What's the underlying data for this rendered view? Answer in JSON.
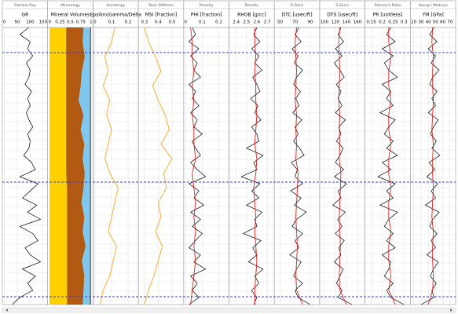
{
  "chart_data": [
    {
      "type": "line",
      "title": "Gamma Ray",
      "xlabel": "GR",
      "xlim": [
        0,
        160
      ],
      "xticks": [
        0,
        50,
        100,
        150
      ],
      "series": [
        {
          "color": "#000000",
          "values": [
            95,
            60,
            100,
            90,
            110,
            85,
            100,
            95,
            80,
            105,
            90,
            100,
            85,
            95,
            110,
            90,
            100,
            95,
            75,
            105,
            120,
            60,
            130,
            100,
            70,
            125,
            90,
            140,
            60,
            110,
            130,
            80,
            100,
            140,
            70,
            120,
            90,
            110,
            60,
            30
          ]
        }
      ]
    },
    {
      "type": "area",
      "title": "Mineralogy",
      "xlabel": "Mineral Volumes",
      "xlim": [
        0,
        1
      ],
      "xticks": [
        0,
        0.25,
        0.5,
        0.75,
        1
      ],
      "series": [
        {
          "color": "#ffd000",
          "values": [
            0.4,
            0.4,
            0.4,
            0.4,
            0.4,
            0.4,
            0.4,
            0.4,
            0.4,
            0.4,
            0.4,
            0.42,
            0.42,
            0.42,
            0.42,
            0.42,
            0.42,
            0.42,
            0.42,
            0.42
          ]
        },
        {
          "color": "#b35a12",
          "values": [
            0.42,
            0.4,
            0.45,
            0.38,
            0.35,
            0.3,
            0.42,
            0.35,
            0.44,
            0.4,
            0.45,
            0.4,
            0.35,
            0.42,
            0.38,
            0.45,
            0.36,
            0.42,
            0.4,
            0.38
          ]
        },
        {
          "color": "#7ec8f0",
          "values": [
            0.15,
            0.17,
            0.12,
            0.19,
            0.22,
            0.27,
            0.15,
            0.22,
            0.13,
            0.17,
            0.12,
            0.15,
            0.2,
            0.13,
            0.17,
            0.1,
            0.19,
            0.13,
            0.15,
            0.17
          ]
        }
      ]
    },
    {
      "type": "line",
      "title": "Anisotropy",
      "xlabel": "Epsilon/Gamma/Delta",
      "xlim": [
        0,
        0.25
      ],
      "xticks": [
        0,
        0.1,
        0.2
      ],
      "series": [
        {
          "color": "#f5a623",
          "values": [
            0.12,
            0.1,
            0.06,
            0.08,
            0.05,
            0.09,
            0.07,
            0.1,
            0.08,
            0.06,
            0.09,
            0.14,
            0.12,
            0.1,
            0.08,
            0.13,
            0.11,
            0.09,
            0.05,
            0.03
          ]
        }
      ]
    },
    {
      "type": "line",
      "title": "Rock Stiffness",
      "xlabel": "MSI [fraction]",
      "xlim": [
        0.27,
        0.57
      ],
      "xticks": [
        0.3,
        0.4,
        0.5
      ],
      "series": [
        {
          "color": "#f5a623",
          "values": [
            0.3,
            0.33,
            0.38,
            0.42,
            0.36,
            0.4,
            0.45,
            0.48,
            0.42,
            0.5,
            0.44,
            0.46,
            0.4,
            0.42,
            0.38,
            0.43,
            0.4,
            0.37,
            0.33,
            0.3
          ]
        }
      ]
    },
    {
      "type": "line",
      "title": "Porosity",
      "xlabel": "PHI [fraction]",
      "xlim": [
        0,
        0.25
      ],
      "xticks": [
        0,
        0.1,
        0.2
      ],
      "series": [
        {
          "color": "#000000",
          "values": [
            0.04,
            0.06,
            0.02,
            0.08,
            0.03,
            0.07,
            0.05,
            0.09,
            0.02,
            0.06,
            0.04,
            0.08,
            0.03,
            0.07,
            0.05,
            0.1,
            0.04,
            0.06,
            0.09,
            0.03,
            0.07,
            0.12,
            0.02,
            0.08,
            0.05,
            0.11,
            0.03,
            0.09,
            0.04,
            0.1,
            0.06,
            0.02,
            0.09,
            0.05,
            0.12,
            0.03,
            0.07,
            0.04,
            0.08,
            0.02
          ]
        },
        {
          "color": "#e02020",
          "values": [
            0.03,
            0.04,
            0.04,
            0.05,
            0.04,
            0.05,
            0.04,
            0.05,
            0.05,
            0.06,
            0.04,
            0.05,
            0.06,
            0.05,
            0.06,
            0.05,
            0.06,
            0.05,
            0.04,
            0.03
          ]
        }
      ]
    },
    {
      "type": "line",
      "title": "Density",
      "xlabel": "RHOB [g/cc]",
      "xlim": [
        2.35,
        2.75
      ],
      "xticks": [
        2.4,
        2.5,
        2.6,
        2.7
      ],
      "series": [
        {
          "color": "#000000",
          "values": [
            2.6,
            2.57,
            2.63,
            2.55,
            2.62,
            2.58,
            2.65,
            2.56,
            2.6,
            2.63,
            2.54,
            2.61,
            2.58,
            2.64,
            2.55,
            2.6,
            2.62,
            2.5,
            2.66,
            2.57,
            2.6,
            2.45,
            2.63,
            2.55,
            2.62,
            2.5,
            2.65,
            2.58,
            2.6,
            2.47,
            2.64,
            2.56,
            2.6,
            2.52,
            2.66,
            2.58,
            2.62,
            2.55,
            2.6,
            2.57
          ]
        },
        {
          "color": "#e02020",
          "values": [
            2.58,
            2.58,
            2.59,
            2.58,
            2.59,
            2.59,
            2.6,
            2.59,
            2.58,
            2.6,
            2.59,
            2.57,
            2.58,
            2.59,
            2.58,
            2.59,
            2.6,
            2.59,
            2.58,
            2.58
          ]
        }
      ]
    },
    {
      "type": "line",
      "title": "P-Sonic",
      "xlabel": "DTC [usec/ft]",
      "xlim": [
        45,
        100
      ],
      "xticks": [
        50,
        70,
        90
      ],
      "series": [
        {
          "color": "#000000",
          "values": [
            75,
            70,
            78,
            66,
            74,
            69,
            80,
            72,
            68,
            77,
            71,
            75,
            67,
            79,
            70,
            74,
            68,
            76,
            82,
            65,
            73,
            70,
            80,
            64,
            78,
            69,
            85,
            72,
            66,
            80,
            70,
            75,
            63,
            78,
            72,
            68,
            80,
            70,
            74,
            90
          ]
        },
        {
          "color": "#e02020",
          "values": [
            72,
            70,
            71,
            72,
            71,
            70,
            72,
            71,
            72,
            71,
            74,
            73,
            72,
            71,
            72,
            73,
            72,
            71,
            72,
            80
          ]
        }
      ]
    },
    {
      "type": "line",
      "title": "S-Sonic",
      "xlabel": "DTS [usec/ft]",
      "xlim": [
        95,
        170
      ],
      "xticks": [
        100,
        120,
        140,
        160
      ],
      "series": [
        {
          "color": "#000000",
          "values": [
            130,
            125,
            135,
            120,
            132,
            118,
            128,
            136,
            122,
            130,
            125,
            132,
            120,
            138,
            126,
            130,
            122,
            134,
            128,
            120,
            135,
            118,
            140,
            125,
            130,
            115,
            138,
            124,
            132,
            120,
            136,
            126,
            130,
            118,
            134,
            128,
            122,
            132,
            125,
            150
          ]
        },
        {
          "color": "#e02020",
          "values": [
            128,
            126,
            127,
            128,
            127,
            126,
            128,
            127,
            128,
            127,
            130,
            129,
            128,
            127,
            128,
            129,
            128,
            127,
            128,
            140
          ]
        }
      ]
    },
    {
      "type": "line",
      "title": "Poisson's Ratio",
      "xlabel": "PR [unitless]",
      "xlim": [
        0.13,
        0.32
      ],
      "xticks": [
        0.15,
        0.2,
        0.25,
        0.3
      ],
      "series": [
        {
          "color": "#000000",
          "values": [
            0.24,
            0.22,
            0.26,
            0.2,
            0.25,
            0.21,
            0.23,
            0.27,
            0.2,
            0.24,
            0.22,
            0.25,
            0.19,
            0.26,
            0.23,
            0.21,
            0.25,
            0.22,
            0.27,
            0.2,
            0.24,
            0.18,
            0.26,
            0.22,
            0.25,
            0.19,
            0.27,
            0.23,
            0.21,
            0.25,
            0.22,
            0.26,
            0.2,
            0.24,
            0.23,
            0.21,
            0.25,
            0.22,
            0.24,
            0.3
          ]
        },
        {
          "color": "#e02020",
          "values": [
            0.23,
            0.23,
            0.24,
            0.23,
            0.23,
            0.24,
            0.23,
            0.23,
            0.24,
            0.23,
            0.23,
            0.24,
            0.23,
            0.23,
            0.24,
            0.23,
            0.23,
            0.24,
            0.23,
            0.26
          ]
        }
      ]
    },
    {
      "type": "line",
      "title": "Young's Modulus",
      "xlabel": "YM [GPa]",
      "xlim": [
        18,
        75
      ],
      "xticks": [
        20,
        30,
        40,
        50,
        60,
        70
      ],
      "series": [
        {
          "color": "#000000",
          "values": [
            48,
            42,
            52,
            40,
            50,
            44,
            55,
            46,
            42,
            52,
            45,
            50,
            40,
            54,
            47,
            43,
            51,
            45,
            56,
            41,
            49,
            38,
            53,
            44,
            50,
            36,
            55,
            46,
            42,
            52,
            44,
            50,
            38,
            54,
            47,
            43,
            51,
            45,
            48,
            30
          ]
        },
        {
          "color": "#e02020",
          "values": [
            46,
            45,
            47,
            46,
            46,
            47,
            46,
            45,
            47,
            46,
            46,
            47,
            46,
            45,
            47,
            46,
            46,
            47,
            46,
            40
          ]
        }
      ]
    }
  ]
}
